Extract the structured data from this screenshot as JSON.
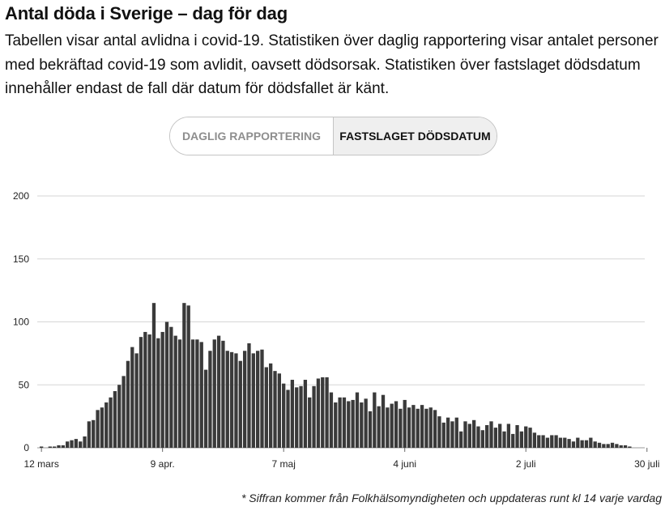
{
  "header": {
    "title": "Antal döda i Sverige – dag för dag",
    "intro": "Tabellen visar antal avlidna i covid-19. Statistiken över daglig rapportering visar antalet personer med bekräftad covid-19 som avlidit, oavsett dödsorsak. Statistiken över fastslaget dödsdatum innehåller endast de fall där datum för dödsfallet är känt."
  },
  "toggle": {
    "options": [
      {
        "label": "DAGLIG RAPPORTERING",
        "selected": false
      },
      {
        "label": "FASTSLAGET DÖDSDATUM",
        "selected": true
      }
    ]
  },
  "chart_data": {
    "type": "bar",
    "title": "",
    "xlabel": "",
    "ylabel": "",
    "ylim": [
      0,
      200
    ],
    "grid": true,
    "yticks": [
      0,
      50,
      100,
      150,
      200
    ],
    "xtick_labels": [
      {
        "label": "12 mars",
        "index": 0
      },
      {
        "label": "9 apr.",
        "index": 28
      },
      {
        "label": "7 maj",
        "index": 56
      },
      {
        "label": "4 juni",
        "index": 84
      },
      {
        "label": "2 juli",
        "index": 112
      },
      {
        "label": "30 juli",
        "index": 140
      }
    ],
    "bar_color": "#3a3a3a",
    "values": [
      1,
      0,
      1,
      1,
      2,
      2,
      5,
      6,
      7,
      5,
      9,
      21,
      22,
      30,
      32,
      36,
      40,
      45,
      50,
      57,
      69,
      80,
      75,
      88,
      92,
      90,
      115,
      87,
      92,
      100,
      96,
      89,
      86,
      115,
      113,
      86,
      86,
      84,
      62,
      77,
      86,
      89,
      85,
      77,
      76,
      75,
      69,
      77,
      83,
      75,
      77,
      78,
      64,
      67,
      61,
      59,
      51,
      46,
      54,
      48,
      49,
      54,
      40,
      49,
      55,
      56,
      56,
      44,
      36,
      40,
      40,
      37,
      38,
      44,
      36,
      39,
      29,
      44,
      33,
      42,
      32,
      35,
      37,
      31,
      38,
      32,
      34,
      31,
      34,
      31,
      32,
      30,
      25,
      20,
      24,
      21,
      24,
      13,
      21,
      19,
      22,
      17,
      14,
      18,
      21,
      16,
      19,
      13,
      19,
      11,
      18,
      13,
      17,
      16,
      12,
      10,
      10,
      8,
      10,
      10,
      8,
      8,
      7,
      5,
      8,
      6,
      6,
      8,
      5,
      4,
      3,
      3,
      4,
      3,
      2,
      2,
      1,
      0,
      0,
      0,
      0
    ]
  },
  "footnote": "* Siffran kommer från Folkhälsomyndigheten och uppdateras runt kl 14 varje vardag"
}
